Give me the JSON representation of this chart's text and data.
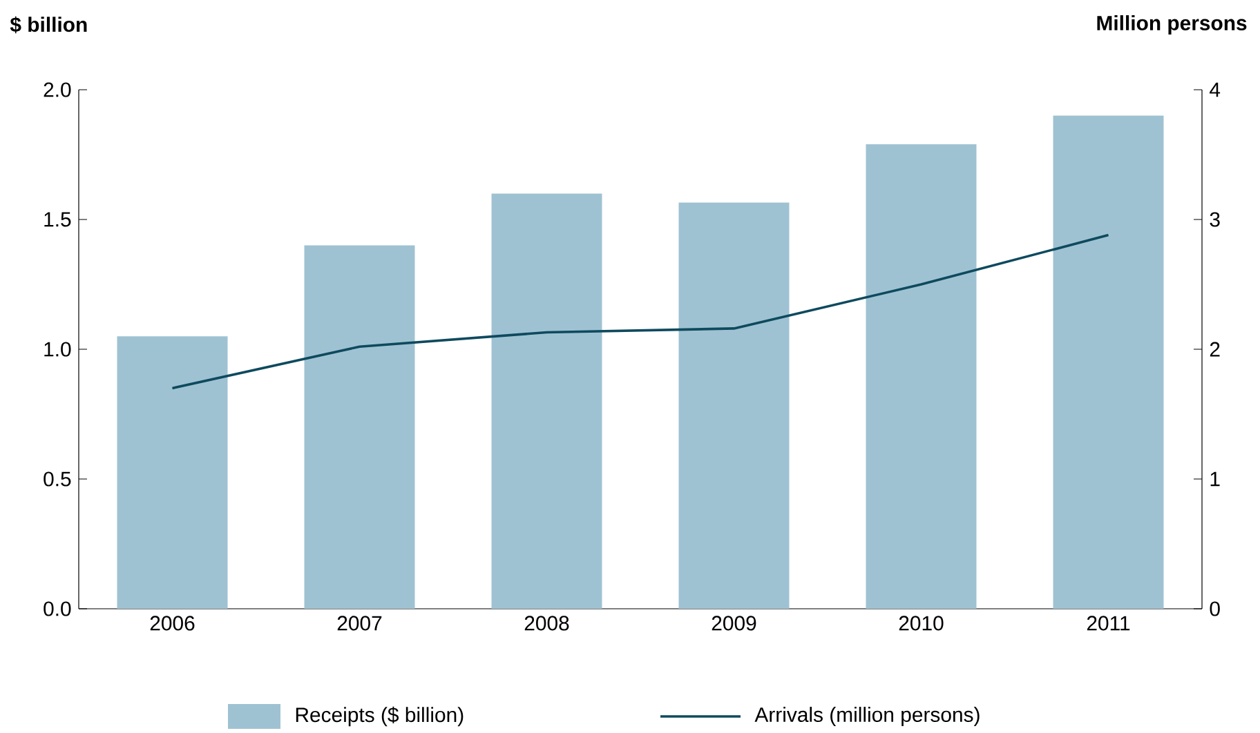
{
  "chart_data": {
    "type": "bar",
    "ylabel": "$ billion",
    "y2label": "Million persons",
    "categories": [
      "2006",
      "2007",
      "2008",
      "2009",
      "2010",
      "2011"
    ],
    "series": [
      {
        "name": "Receipts ($ billion)",
        "color": "#9fc2d2",
        "values": [
          1.05,
          1.4,
          1.6,
          1.565,
          1.79,
          1.9
        ]
      },
      {
        "name": "Arrivals (million persons)",
        "type": "line",
        "axis": "y2",
        "color": "#0e4a5e",
        "values": [
          1.7,
          2.02,
          2.13,
          2.16,
          2.5,
          2.88
        ]
      }
    ],
    "ylim": [
      0,
      2
    ],
    "yticks": [
      {
        "value": 0,
        "label": "0.0"
      },
      {
        "value": 0.5,
        "label": "0.5"
      },
      {
        "value": 1,
        "label": "1.0"
      },
      {
        "value": 1.5,
        "label": "1.5"
      },
      {
        "value": 2,
        "label": "2.0"
      }
    ],
    "y2lim": [
      0,
      4
    ],
    "y2ticks": [
      0,
      1,
      2,
      3,
      4
    ],
    "legend": "bottom",
    "grid": false,
    "marker": "none"
  }
}
